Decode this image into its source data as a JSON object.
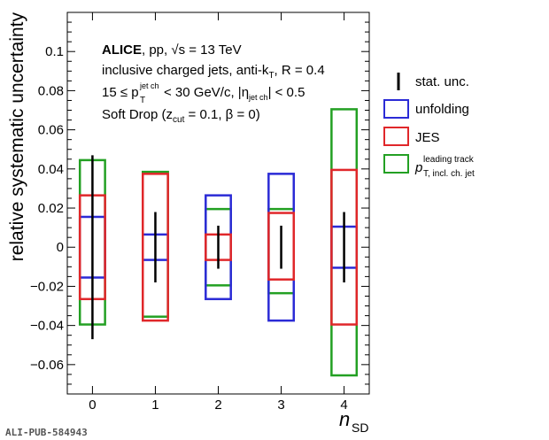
{
  "chart_data": {
    "type": "box-errorbar",
    "xlabel_main": "n",
    "xlabel_sub": "SD",
    "ylabel": "relative systematic uncertainty",
    "x": [
      0,
      1,
      2,
      3,
      4
    ],
    "xlim": [
      -0.4,
      4.4
    ],
    "ylim": [
      -0.075,
      0.12
    ],
    "yticks": [
      -0.06,
      -0.04,
      -0.02,
      0,
      0.02,
      0.04,
      0.06,
      0.08,
      0.1
    ],
    "yticklabels": [
      "−0.06",
      "−0.04",
      "−0.02",
      "0",
      "0.02",
      "0.04",
      "0.06",
      "0.08",
      "0.1"
    ],
    "xticklabels": [
      "0",
      "1",
      "2",
      "3",
      "4"
    ],
    "series": [
      {
        "name": "stat. unc.",
        "style": "errorbar",
        "color": "#000000",
        "low": [
          -0.047,
          -0.018,
          -0.011,
          -0.011,
          -0.018
        ],
        "high": [
          0.047,
          0.018,
          0.011,
          0.011,
          0.018
        ]
      },
      {
        "name": "unfolding",
        "style": "box",
        "color": "#2b2bd6",
        "low": [
          -0.0155,
          -0.0065,
          -0.0265,
          -0.0375,
          -0.0105
        ],
        "high": [
          0.0155,
          0.0065,
          0.0265,
          0.0375,
          0.0105
        ]
      },
      {
        "name": "JES",
        "style": "box",
        "color": "#e0272a",
        "low": [
          -0.0265,
          -0.0375,
          -0.0065,
          -0.0165,
          -0.0395
        ],
        "high": [
          0.0265,
          0.0375,
          0.0065,
          0.0175,
          0.0395
        ]
      },
      {
        "name": "p_T^{leading track} (incl. ch. jet)",
        "style": "box",
        "color": "#23a023",
        "low": [
          -0.0395,
          -0.0355,
          -0.0195,
          -0.0235,
          -0.0655
        ],
        "high": [
          0.0445,
          0.0385,
          0.0195,
          0.0195,
          0.0705
        ]
      }
    ],
    "grid": false,
    "legend_position": "right"
  },
  "annotations": {
    "line1_bold": "ALICE",
    "line1_rest": ", pp, √s = 13 TeV",
    "line2": "inclusive charged jets, anti-k",
    "line2_sub": "T",
    "line2_end": ", R = 0.4",
    "line3_a": "15 ≤ p",
    "line3_sup": "jet ch",
    "line3_sub": "T",
    "line3_b": " < 30 GeV/c, |η",
    "line3_sub2": "jet ch",
    "line3_c": "| < 0.5",
    "line4_a": "Soft Drop (z",
    "line4_sub": "cut",
    "line4_b": " = 0.1, β = 0)"
  },
  "legend": {
    "stat": "stat. unc.",
    "unfolding": "unfolding",
    "jes": "JES",
    "leading_p": "p",
    "leading_sup": "leading track",
    "leading_sub": "T, incl. ch. jet"
  },
  "footer": "ALI-PUB-584943"
}
